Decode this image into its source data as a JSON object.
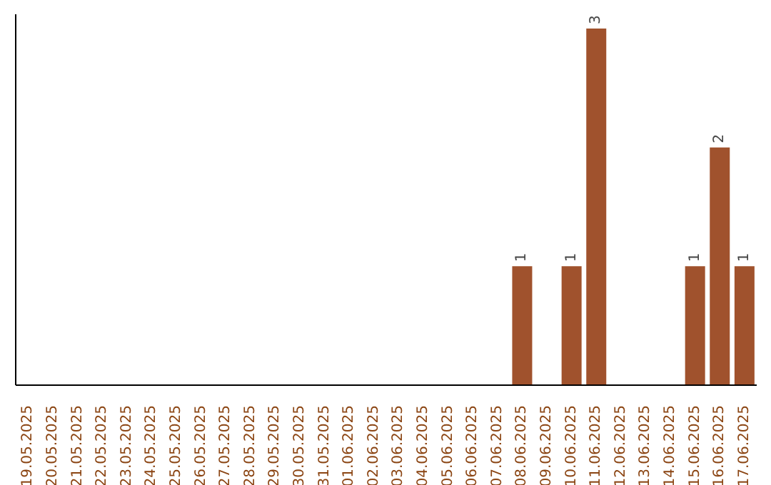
{
  "chart_data": {
    "type": "bar",
    "categories": [
      "19.05.2025",
      "20.05.2025",
      "21.05.2025",
      "22.05.2025",
      "23.05.2025",
      "24.05.2025",
      "25.05.2025",
      "26.05.2025",
      "27.05.2025",
      "28.05.2025",
      "29.05.2025",
      "30.05.2025",
      "31.05.2025",
      "01.06.2025",
      "02.06.2025",
      "03.06.2025",
      "04.06.2025",
      "05.06.2025",
      "06.06.2025",
      "07.06.2025",
      "08.06.2025",
      "09.06.2025",
      "10.06.2025",
      "11.06.2025",
      "12.06.2025",
      "13.06.2025",
      "14.06.2025",
      "15.06.2025",
      "16.06.2025",
      "17.06.2025"
    ],
    "values": [
      null,
      null,
      null,
      null,
      null,
      null,
      null,
      null,
      null,
      null,
      null,
      null,
      null,
      null,
      null,
      null,
      null,
      null,
      null,
      null,
      1,
      null,
      1,
      3,
      null,
      null,
      null,
      1,
      2,
      1
    ],
    "data_labels": true,
    "color": "#a0522d",
    "tick_labels": "x"
  }
}
